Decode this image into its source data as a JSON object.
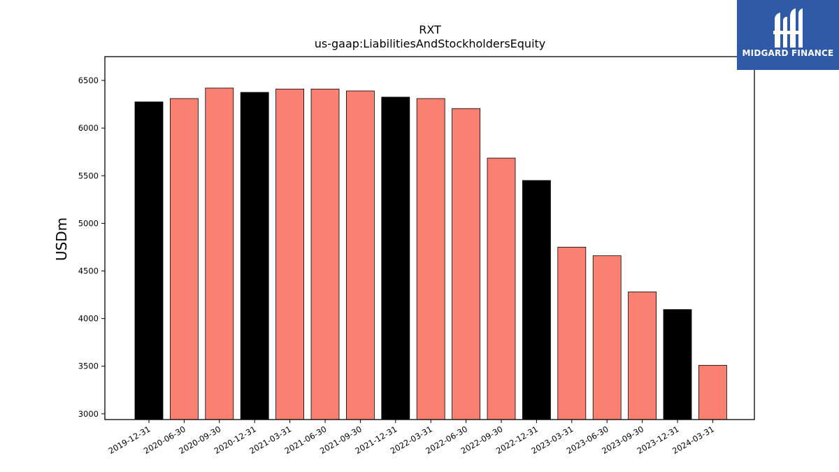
{
  "logo": {
    "text": "MIDGARD FINANCE"
  },
  "colors": {
    "highlight": "#000000",
    "default": "#fa8072",
    "logo_bg": "#2f5aa8"
  },
  "chart_data": {
    "type": "bar",
    "title": "RXT",
    "subtitle": "us-gaap:LiabilitiesAndStockholdersEquity",
    "xlabel": "",
    "ylabel": "USDm",
    "ylim": [
      2940,
      6750
    ],
    "yticks": [
      3000,
      3500,
      4000,
      4500,
      5000,
      5500,
      6000,
      6500
    ],
    "grid": false,
    "categories": [
      "2019-12-31",
      "2020-06-30",
      "2020-09-30",
      "2020-12-31",
      "2021-03-31",
      "2021-06-30",
      "2021-09-30",
      "2021-12-31",
      "2022-03-31",
      "2022-06-30",
      "2022-09-30",
      "2022-12-31",
      "2023-03-31",
      "2023-06-30",
      "2023-09-30",
      "2023-12-31",
      "2024-03-31"
    ],
    "values": [
      6275,
      6310,
      6420,
      6375,
      6410,
      6410,
      6390,
      6325,
      6310,
      6205,
      5685,
      5450,
      4750,
      4660,
      4280,
      4095,
      3510
    ],
    "bar_colors": [
      "#000000",
      "#fa8072",
      "#fa8072",
      "#000000",
      "#fa8072",
      "#fa8072",
      "#fa8072",
      "#000000",
      "#fa8072",
      "#fa8072",
      "#fa8072",
      "#000000",
      "#fa8072",
      "#fa8072",
      "#fa8072",
      "#000000",
      "#fa8072"
    ]
  }
}
